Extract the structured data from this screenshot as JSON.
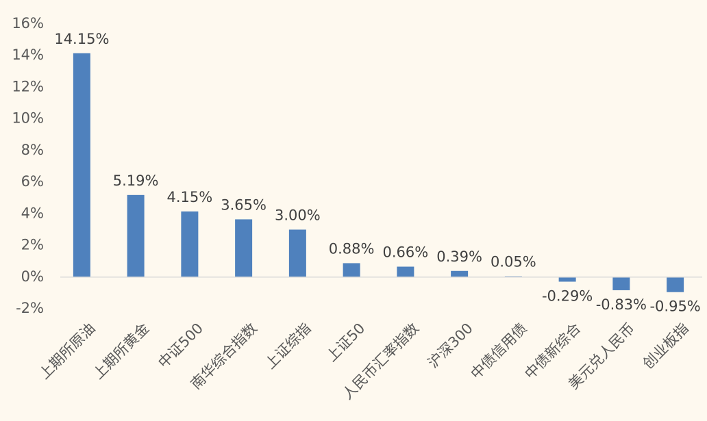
{
  "colors": {
    "background": "#FEF9EF",
    "bar": "#4F81BD",
    "axis": "#D9D9D9",
    "text": "#595959",
    "label": "#404040"
  },
  "chart_data": {
    "type": "bar",
    "title": "",
    "xlabel": "",
    "ylabel": "",
    "ylim": [
      -0.02,
      0.16
    ],
    "grid": false,
    "y_tick_values": [
      -0.02,
      0,
      0.02,
      0.04,
      0.06,
      0.08,
      0.1,
      0.12,
      0.14,
      0.16
    ],
    "y_tick_labels": [
      "-2%",
      "0%",
      "2%",
      "4%",
      "6%",
      "8%",
      "10%",
      "12%",
      "14%",
      "16%"
    ],
    "categories": [
      "上期所原油",
      "上期所黄金",
      "中证500",
      "南华综合指数",
      "上证综指",
      "上证50",
      "人民币汇率指数",
      "沪深300",
      "中债信用债",
      "中债新综合",
      "美元兑人民币",
      "创业板指"
    ],
    "values": [
      0.1415,
      0.0519,
      0.0415,
      0.0365,
      0.03,
      0.0088,
      0.0066,
      0.0039,
      0.0005,
      -0.0029,
      -0.0083,
      -0.0095
    ],
    "data_labels": [
      "14.15%",
      "5.19%",
      "4.15%",
      "3.65%",
      "3.00%",
      "0.88%",
      "0.66%",
      "0.39%",
      "0.05%",
      "-0.29%",
      "-0.83%",
      "-0.95%"
    ]
  }
}
